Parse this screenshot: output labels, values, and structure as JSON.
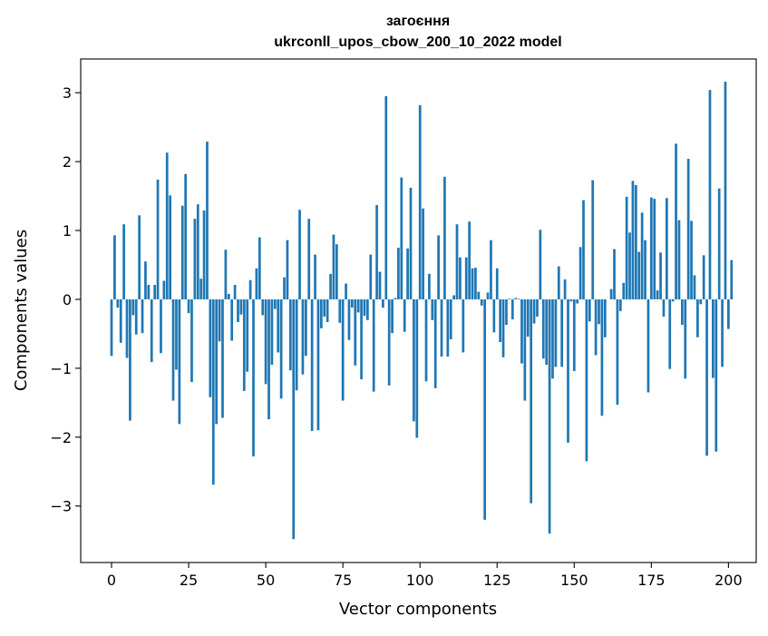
{
  "chart_data": {
    "type": "bar",
    "title_line1": "загоєння",
    "title_line2": "ukrconll_upos_cbow_200_10_2022 model",
    "xlabel": "Vector components",
    "ylabel": "Components values",
    "xlim": [
      -10,
      209
    ],
    "ylim": [
      -3.82,
      3.49
    ],
    "xticks": [
      0,
      25,
      50,
      75,
      100,
      125,
      150,
      175,
      200
    ],
    "yticks": [
      -3,
      -2,
      -1,
      0,
      1,
      2,
      3
    ],
    "ytick_labels": [
      "−3",
      "−2",
      "−1",
      "0",
      "1",
      "2",
      "3"
    ],
    "bar_color": "#1f77b4",
    "values": [
      -0.82,
      0.93,
      -0.12,
      -0.63,
      1.09,
      -0.85,
      -1.76,
      -0.23,
      -0.51,
      1.22,
      -0.49,
      0.55,
      0.21,
      -0.91,
      0.21,
      1.74,
      -0.78,
      0.27,
      2.13,
      1.51,
      -1.47,
      -1.02,
      -1.81,
      1.36,
      1.82,
      -0.2,
      -1.2,
      1.17,
      1.38,
      0.3,
      1.29,
      2.29,
      -1.42,
      -2.69,
      -1.81,
      -0.61,
      -1.72,
      0.72,
      0.08,
      -0.6,
      0.21,
      -0.33,
      -0.22,
      -1.33,
      -1.05,
      0.28,
      -2.28,
      0.45,
      0.9,
      -0.23,
      -1.23,
      -1.74,
      -0.95,
      -0.14,
      -0.77,
      -1.44,
      0.32,
      0.86,
      -1.03,
      -3.48,
      -1.32,
      1.3,
      -1.09,
      -0.82,
      1.17,
      -1.91,
      0.65,
      -1.9,
      -0.42,
      -0.25,
      -0.33,
      0.37,
      0.94,
      0.8,
      -0.34,
      -1.47,
      0.23,
      -0.59,
      -0.12,
      -0.96,
      -0.19,
      -1.16,
      -0.24,
      -0.3,
      0.65,
      -1.34,
      1.37,
      0.4,
      -0.12,
      2.95,
      -1.25,
      -0.49,
      0.02,
      0.75,
      1.77,
      -0.47,
      0.74,
      1.62,
      -1.77,
      -2.01,
      2.82,
      1.32,
      -1.19,
      0.37,
      -0.3,
      -1.29,
      0.93,
      -0.83,
      1.78,
      -0.83,
      -0.58,
      0.06,
      1.09,
      0.61,
      -0.77,
      0.61,
      1.13,
      0.45,
      0.46,
      0.11,
      -0.09,
      -3.2,
      0.1,
      0.86,
      -0.48,
      0.45,
      -0.62,
      -0.84,
      -0.37,
      0.01,
      -0.29,
      0.02,
      0.01,
      -0.93,
      -1.47,
      -0.54,
      -2.96,
      -0.35,
      -0.25,
      1.01,
      -0.86,
      -0.95,
      -3.4,
      -1.15,
      -0.98,
      0.48,
      -0.98,
      0.29,
      -2.08,
      -0.03,
      -1.04,
      -0.06,
      0.76,
      1.44,
      -2.35,
      -0.32,
      1.73,
      -0.81,
      -0.36,
      -1.69,
      -0.55,
      0.0,
      0.15,
      0.73,
      -1.53,
      -0.17,
      0.24,
      1.49,
      0.97,
      1.72,
      1.66,
      0.69,
      1.26,
      0.86,
      -1.35,
      1.48,
      1.46,
      0.13,
      0.68,
      -0.25,
      1.47,
      -1.01,
      -0.03,
      2.26,
      1.15,
      -0.37,
      -1.15,
      2.04,
      1.14,
      0.35,
      -0.55,
      -0.07,
      0.64,
      -2.27,
      3.04,
      -1.14,
      -2.21,
      1.61,
      -0.98,
      3.16,
      -0.43,
      0.57
    ]
  }
}
